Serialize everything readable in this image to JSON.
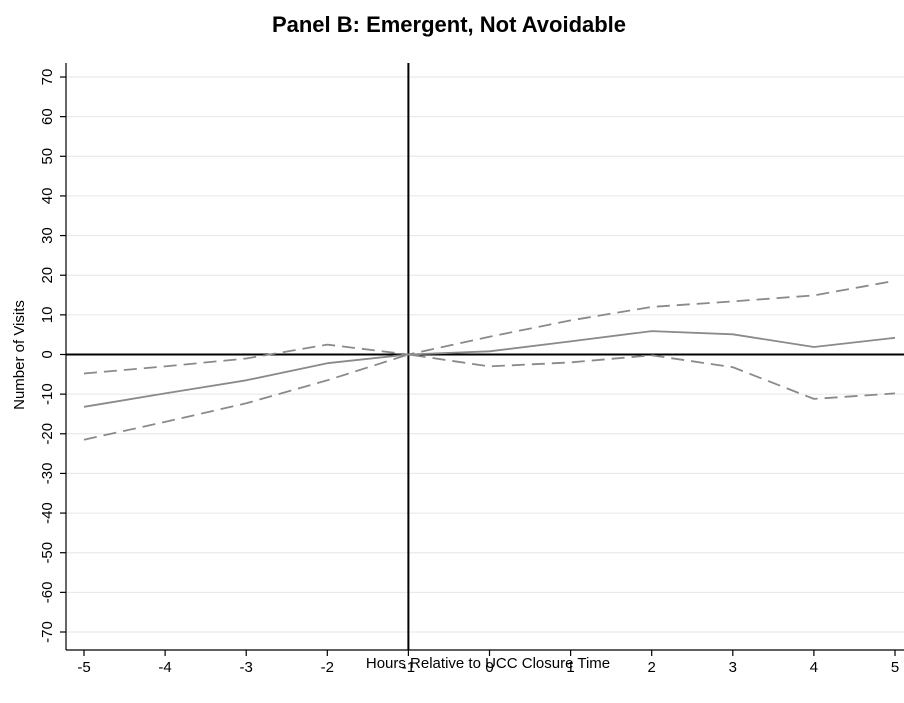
{
  "chart_data": {
    "type": "line",
    "title": "Panel B: Emergent, Not Avoidable",
    "xlabel": "Hours Relative to UCC Closure Time",
    "ylabel": "Number of Visits",
    "x": [
      -5,
      -4,
      -3,
      -2,
      -1,
      0,
      1,
      2,
      3,
      4,
      5
    ],
    "xlim": [
      -5,
      5
    ],
    "ylim": [
      -70,
      70
    ],
    "xticks": [
      -5,
      -4,
      -3,
      -2,
      -1,
      0,
      1,
      2,
      3,
      4,
      5
    ],
    "yticks": [
      -70,
      -60,
      -50,
      -40,
      -30,
      -20,
      -10,
      0,
      10,
      20,
      30,
      40,
      50,
      60,
      70
    ],
    "grid": true,
    "reference_lines": {
      "vertical_x": -1,
      "horizontal_y": 0
    },
    "series": [
      {
        "style": "solid",
        "color": "#8a8a8a",
        "values": [
          -13.2,
          -9.8,
          -6.5,
          -2.2,
          0,
          0.8,
          3.3,
          5.9,
          5.1,
          1.9,
          4.2
        ]
      },
      {
        "style": "dashed",
        "color": "#8a8a8a",
        "values": [
          -4.8,
          -3.0,
          -1.0,
          2.5,
          0,
          4.5,
          8.6,
          12.0,
          13.4,
          14.9,
          18.6
        ]
      },
      {
        "style": "dashed",
        "color": "#8a8a8a",
        "values": [
          -21.5,
          -17.0,
          -12.3,
          -6.5,
          0,
          -3.0,
          -2.0,
          -0.2,
          -3.2,
          -11.2,
          -9.8
        ]
      }
    ]
  }
}
